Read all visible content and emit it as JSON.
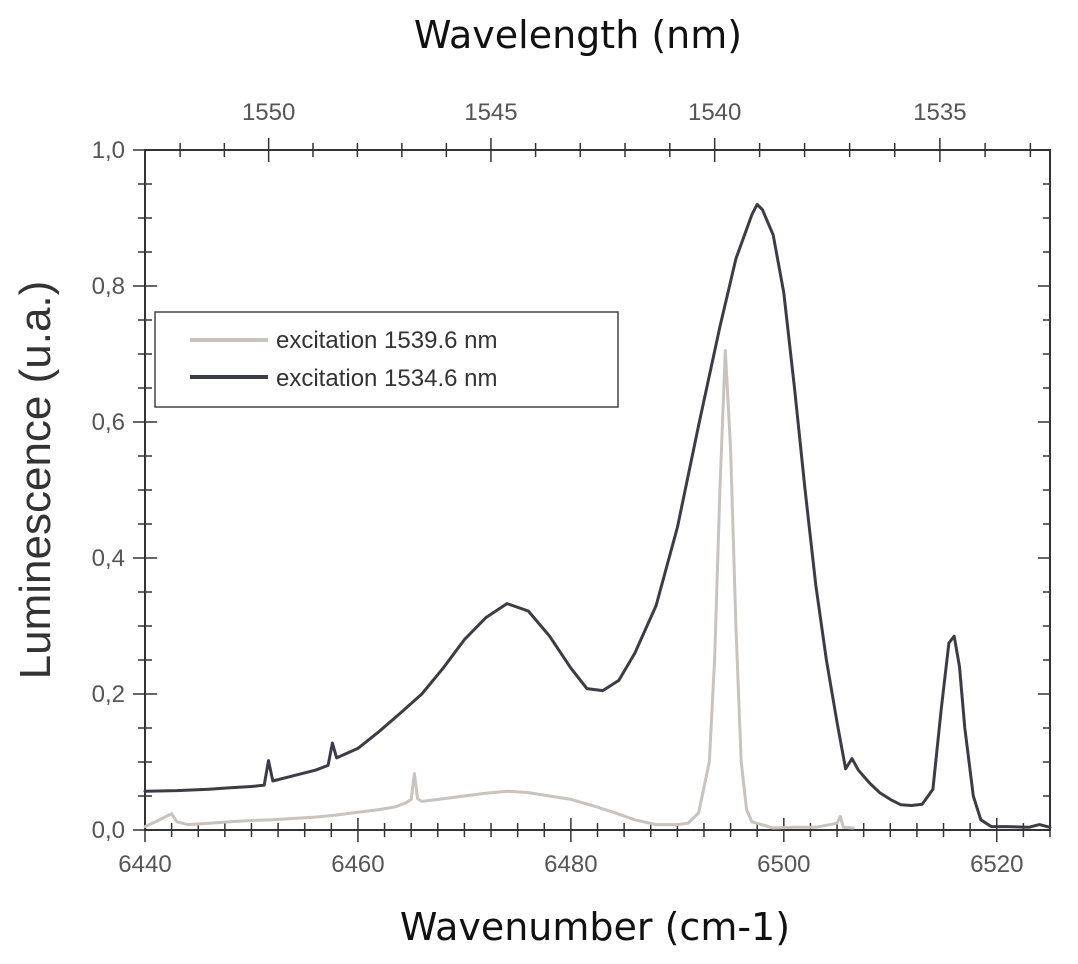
{
  "chart_data": {
    "type": "line",
    "title": "",
    "xlabel": "Wavenumber (cm-1)",
    "ylabel": "Luminescence (u.a.)",
    "top_xlabel": "Wavelength (nm)",
    "xlim": [
      6440,
      6525
    ],
    "ylim": [
      0,
      1.0
    ],
    "x_ticks": [
      "6440",
      "6460",
      "6480",
      "6500",
      "6520"
    ],
    "y_ticks": [
      "0,0",
      "0,2",
      "0,4",
      "0,6",
      "0,8",
      "1,0"
    ],
    "top_x_ticks": [
      "1550",
      "1545",
      "1540",
      "1535"
    ],
    "grid": false,
    "legend_position": "upper-left",
    "series": [
      {
        "name": "excitation 1539.6 nm",
        "color": "#c8c3be",
        "points": [
          [
            6440,
            0.005
          ],
          [
            6441,
            0.012
          ],
          [
            6442,
            0.02
          ],
          [
            6442.5,
            0.024
          ],
          [
            6443,
            0.012
          ],
          [
            6444,
            0.008
          ],
          [
            6446,
            0.01
          ],
          [
            6448,
            0.012
          ],
          [
            6450,
            0.014
          ],
          [
            6452,
            0.015
          ],
          [
            6454,
            0.017
          ],
          [
            6456,
            0.019
          ],
          [
            6458,
            0.022
          ],
          [
            6460,
            0.026
          ],
          [
            6462,
            0.03
          ],
          [
            6463.5,
            0.034
          ],
          [
            6464.5,
            0.04
          ],
          [
            6465,
            0.045
          ],
          [
            6465.3,
            0.083
          ],
          [
            6465.6,
            0.046
          ],
          [
            6466,
            0.042
          ],
          [
            6468,
            0.046
          ],
          [
            6470,
            0.05
          ],
          [
            6472,
            0.054
          ],
          [
            6474,
            0.057
          ],
          [
            6476,
            0.055
          ],
          [
            6478,
            0.05
          ],
          [
            6480,
            0.045
          ],
          [
            6482,
            0.036
          ],
          [
            6484,
            0.026
          ],
          [
            6486,
            0.015
          ],
          [
            6488,
            0.008
          ],
          [
            6490,
            0.008
          ],
          [
            6491,
            0.01
          ],
          [
            6492,
            0.025
          ],
          [
            6493,
            0.1
          ],
          [
            6493.5,
            0.25
          ],
          [
            6494,
            0.5
          ],
          [
            6494.5,
            0.705
          ],
          [
            6495,
            0.56
          ],
          [
            6495.5,
            0.3
          ],
          [
            6496,
            0.1
          ],
          [
            6496.5,
            0.03
          ],
          [
            6497,
            0.012
          ],
          [
            6499,
            0.003
          ],
          [
            6501,
            0.004
          ],
          [
            6503,
            0.004
          ],
          [
            6505,
            0.01
          ],
          [
            6505.3,
            0.02
          ],
          [
            6505.6,
            0.004
          ],
          [
            6506.5,
            0.003
          ]
        ]
      },
      {
        "name": "excitation 1534.6 nm",
        "color": "#3c3c44",
        "points": [
          [
            6440,
            0.057
          ],
          [
            6443,
            0.058
          ],
          [
            6446,
            0.06
          ],
          [
            6448,
            0.062
          ],
          [
            6450,
            0.064
          ],
          [
            6451.2,
            0.066
          ],
          [
            6451.6,
            0.102
          ],
          [
            6452,
            0.072
          ],
          [
            6454,
            0.08
          ],
          [
            6456,
            0.088
          ],
          [
            6457.2,
            0.095
          ],
          [
            6457.6,
            0.128
          ],
          [
            6458,
            0.106
          ],
          [
            6460,
            0.12
          ],
          [
            6462,
            0.145
          ],
          [
            6464,
            0.172
          ],
          [
            6466,
            0.2
          ],
          [
            6468,
            0.238
          ],
          [
            6470,
            0.28
          ],
          [
            6472,
            0.312
          ],
          [
            6474,
            0.333
          ],
          [
            6476,
            0.322
          ],
          [
            6478,
            0.285
          ],
          [
            6480,
            0.238
          ],
          [
            6481.5,
            0.208
          ],
          [
            6483,
            0.205
          ],
          [
            6484.5,
            0.22
          ],
          [
            6486,
            0.26
          ],
          [
            6488,
            0.33
          ],
          [
            6490,
            0.445
          ],
          [
            6492,
            0.595
          ],
          [
            6494,
            0.74
          ],
          [
            6495.5,
            0.84
          ],
          [
            6497,
            0.905
          ],
          [
            6497.5,
            0.92
          ],
          [
            6498,
            0.912
          ],
          [
            6499,
            0.875
          ],
          [
            6500,
            0.79
          ],
          [
            6501,
            0.65
          ],
          [
            6502,
            0.5
          ],
          [
            6503,
            0.36
          ],
          [
            6504,
            0.25
          ],
          [
            6505,
            0.158
          ],
          [
            6505.8,
            0.09
          ],
          [
            6506.4,
            0.105
          ],
          [
            6507,
            0.088
          ],
          [
            6508,
            0.07
          ],
          [
            6509,
            0.055
          ],
          [
            6510,
            0.045
          ],
          [
            6511,
            0.037
          ],
          [
            6512,
            0.036
          ],
          [
            6513,
            0.038
          ],
          [
            6514,
            0.06
          ],
          [
            6514.8,
            0.18
          ],
          [
            6515.5,
            0.275
          ],
          [
            6516,
            0.285
          ],
          [
            6516.5,
            0.24
          ],
          [
            6517,
            0.15
          ],
          [
            6517.8,
            0.05
          ],
          [
            6518.5,
            0.015
          ],
          [
            6519.5,
            0.005
          ],
          [
            6521,
            0.005
          ],
          [
            6523,
            0.004
          ],
          [
            6524,
            0.008
          ],
          [
            6525,
            0.004
          ]
        ]
      }
    ]
  }
}
